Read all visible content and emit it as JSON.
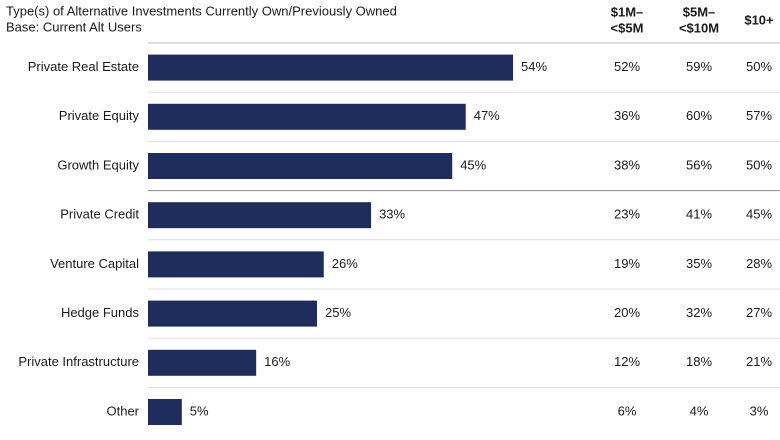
{
  "chart_data": {
    "type": "bar",
    "orientation": "horizontal",
    "title": "Type(s) of Alternative Investments Currently Own/Previously Owned",
    "subtitle": "Base: Current Alt Users",
    "categories": [
      "Private Real Estate",
      "Private Equity",
      "Growth Equity",
      "Private Credit",
      "Venture Capital",
      "Hedge Funds",
      "Private Infrastructure",
      "Other"
    ],
    "values": [
      54,
      47,
      45,
      33,
      26,
      25,
      16,
      5
    ],
    "value_labels": [
      "54%",
      "47%",
      "45%",
      "33%",
      "26%",
      "25%",
      "16%",
      "5%"
    ],
    "color": "#1f2d5c"
  },
  "table": {
    "columns": [
      {
        "header": [
          "$1M–",
          "<$5M"
        ],
        "cells": [
          "52%",
          "36%",
          "38%",
          "23%",
          "19%",
          "20%",
          "12%",
          "6%"
        ]
      },
      {
        "header": [
          "$5M–",
          "<$10M"
        ],
        "cells": [
          "59%",
          "60%",
          "56%",
          "41%",
          "35%",
          "32%",
          "18%",
          "4%"
        ]
      },
      {
        "header": [
          "$10+"
        ],
        "cells": [
          "50%",
          "57%",
          "50%",
          "45%",
          "28%",
          "27%",
          "21%",
          "3%"
        ]
      }
    ]
  }
}
